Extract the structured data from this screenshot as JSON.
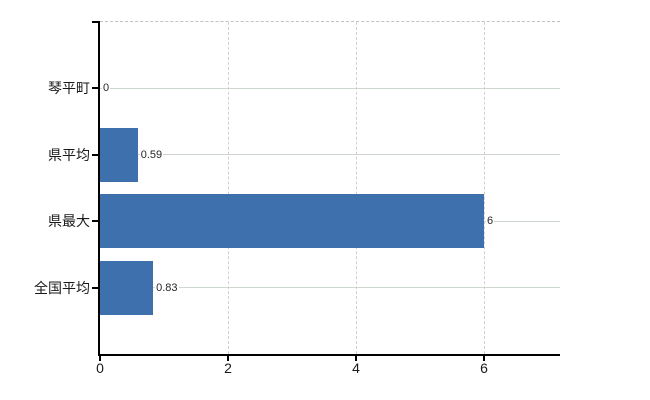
{
  "chart_data": {
    "type": "bar",
    "orientation": "horizontal",
    "title": "",
    "categories": [
      "琴平町",
      "県平均",
      "県最大",
      "全国平均"
    ],
    "values": [
      0,
      0.59,
      6,
      0.83
    ],
    "data_labels": [
      "0",
      "0.59",
      "6",
      "0.83"
    ],
    "xticks": [
      0,
      2,
      4,
      6
    ],
    "xtick_labels": [
      "0",
      "2",
      "4",
      "6"
    ],
    "xlim": [
      0,
      7.2
    ],
    "grid": true,
    "legend": false,
    "colors": {
      "bar": "#3f70ae",
      "h_grid": "#cdd7cd",
      "v_grid": "#d5cdd3",
      "top_border": "#c2c2c2",
      "axis": "#000000",
      "data_label": "#262626",
      "tick_label": "#1a1a1a"
    }
  }
}
